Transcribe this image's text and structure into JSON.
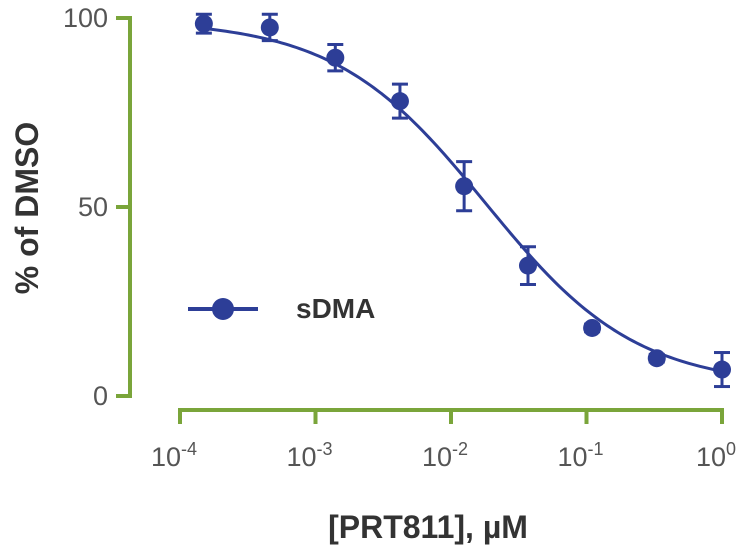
{
  "chart_data": {
    "type": "scatter",
    "xscale": "log",
    "xlabel": "[PRT811], µM",
    "ylabel": "% of DMSO",
    "xlim": [
      0.0001,
      1
    ],
    "ylim": [
      0,
      100
    ],
    "x_ticks": [
      {
        "value": 0.0001,
        "base": "10",
        "exp": "-4"
      },
      {
        "value": 0.001,
        "base": "10",
        "exp": "-3"
      },
      {
        "value": 0.01,
        "base": "10",
        "exp": "-2"
      },
      {
        "value": 0.1,
        "base": "10",
        "exp": "-1"
      },
      {
        "value": 1,
        "base": "10",
        "exp": "0"
      }
    ],
    "y_ticks": [
      0,
      50,
      100
    ],
    "grid": false,
    "legend_position": "center-left",
    "axis_color": "#7aa53a",
    "series": [
      {
        "name": "sDMA",
        "color": "#2d3e97",
        "points": [
          {
            "x": 0.00015,
            "y": 98.5,
            "err": 2.5
          },
          {
            "x": 0.00046,
            "y": 97.5,
            "err": 3.5
          },
          {
            "x": 0.0014,
            "y": 89.5,
            "err": 3.5
          },
          {
            "x": 0.0042,
            "y": 78,
            "err": 4.5
          },
          {
            "x": 0.0125,
            "y": 55.5,
            "err": 6.5
          },
          {
            "x": 0.037,
            "y": 34.5,
            "err": 5
          },
          {
            "x": 0.11,
            "y": 18,
            "err": 1
          },
          {
            "x": 0.33,
            "y": 10,
            "err": 1
          },
          {
            "x": 1,
            "y": 7,
            "err": 4.5
          }
        ],
        "fit": {
          "top": 99.5,
          "bottom": 2.5,
          "ic50": 0.018,
          "hill": 0.78
        }
      }
    ]
  }
}
